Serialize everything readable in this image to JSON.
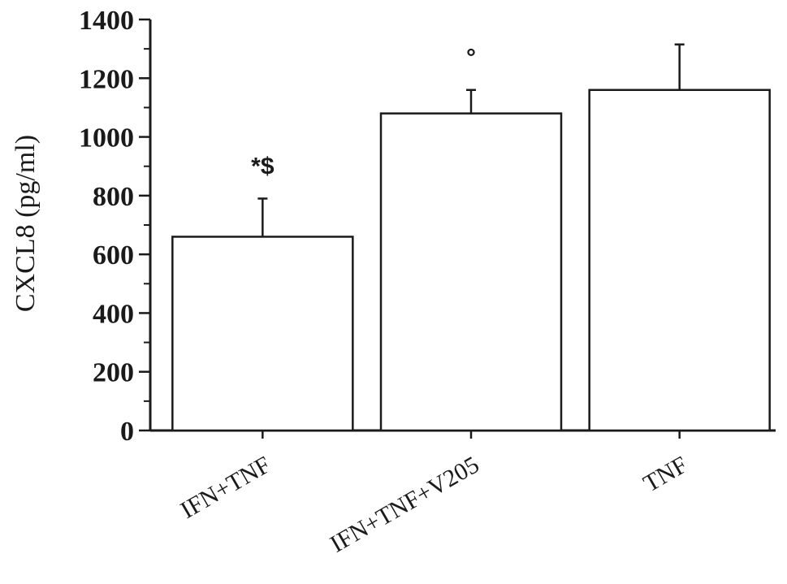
{
  "chart_data": {
    "type": "bar",
    "title": "",
    "xlabel": "",
    "ylabel": "CXCL8 (pg/ml)",
    "ylim": [
      0,
      1400
    ],
    "yticks": [
      0,
      200,
      400,
      600,
      800,
      1000,
      1200,
      1400
    ],
    "grid": false,
    "categories": [
      "IFN+TNF",
      "IFN+TNF+V205",
      "TNF"
    ],
    "values": [
      660,
      1080,
      1160
    ],
    "error_upper": [
      130,
      80,
      155
    ],
    "annotations": [
      "*$",
      "°",
      ""
    ],
    "bar_fill": "#ffffff",
    "bar_stroke": "#1a1a1a"
  }
}
